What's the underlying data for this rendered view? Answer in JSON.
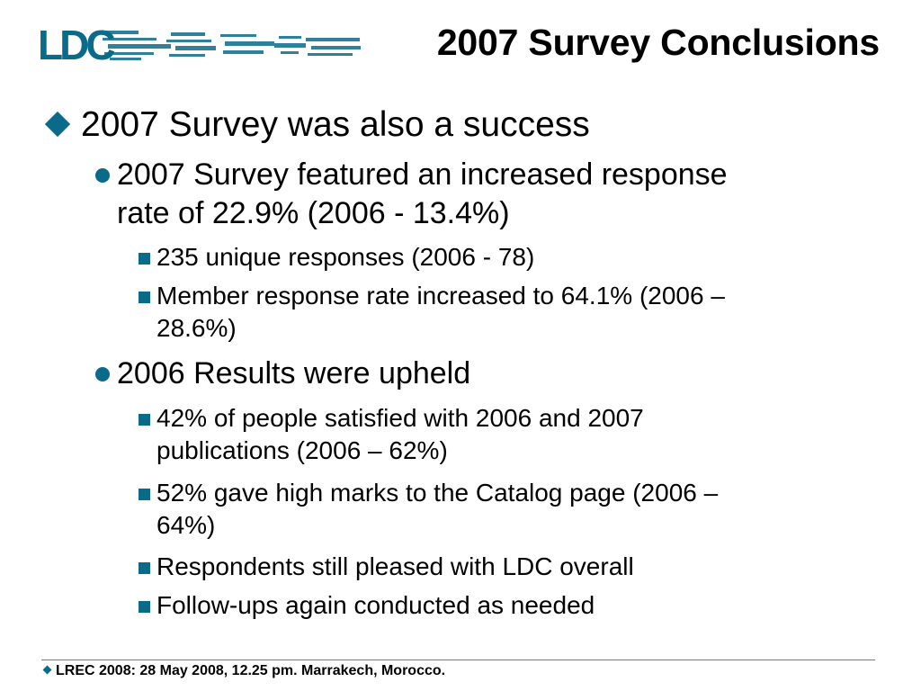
{
  "brand": {
    "logo_text": "LDC",
    "accent": "#0a6a8a"
  },
  "title": "2007 Survey Conclusions",
  "content": {
    "p1": "2007 Survey was also a success",
    "p1_1a": "2007 Survey featured an increased response",
    "p1_1b": "rate of 22.9% (2006 - 13.4%)",
    "p1_1_1": "235 unique responses (2006 - 78)",
    "p1_1_2a": "Member response rate increased to 64.1% (2006 –",
    "p1_1_2b": "28.6%)",
    "p1_2": "2006 Results were upheld",
    "p1_2_1a": "42% of people satisfied with 2006 and 2007",
    "p1_2_1b": "publications (2006 – 62%)",
    "p1_2_2a": "52% gave high marks to the Catalog page (2006 –",
    "p1_2_2b": "64%)",
    "p1_2_3": "Respondents still pleased with LDC overall",
    "p1_2_4": "Follow-ups again conducted as needed"
  },
  "footer": {
    "text": "LREC 2008: 28 May 2008, 12.25 pm. Marrakech, Morocco."
  }
}
